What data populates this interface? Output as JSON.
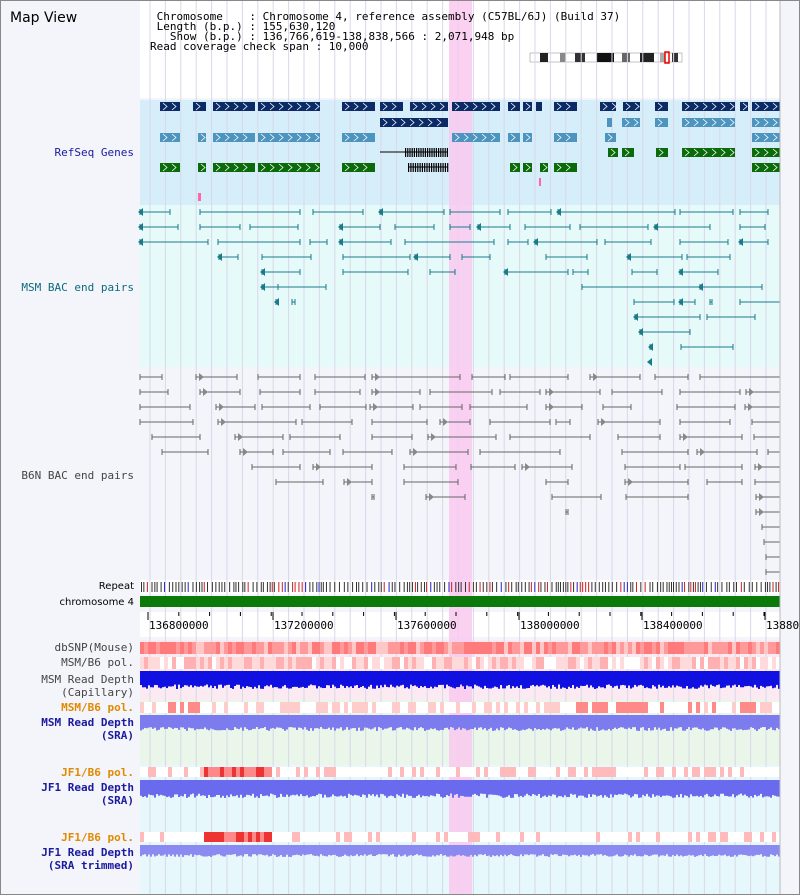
{
  "title": "Map View",
  "info_lines": [
    " Chromosome    : Chromosome 4, reference assembly (C57BL/6J) (Build 37)",
    " Length (b.p.) : 155,630,120",
    "   Show (b.p.) : 136,766,619-138,838,566 : 2,071,948 bp",
    "Read coverage check span : 10,000"
  ],
  "tracks": {
    "refseq": "RefSeq Genes",
    "msm_bac": "MSM BAC end pairs",
    "b6n_bac": "B6N BAC end pairs",
    "repeat": "Repeat",
    "chromosome": "chromosome 4",
    "dbsnp": "dbSNP(Mouse)",
    "msm_pol": "MSM/B6 pol.",
    "msm_depth_cap_1": "MSM Read Depth",
    "msm_depth_cap_2": "(Capillary)",
    "msm_pol_2": "MSM/B6 pol.",
    "msm_depth_sra_1": "MSM Read Depth",
    "msm_depth_sra_2": "(SRA)",
    "jf1_pol": "JF1/B6 pol.",
    "jf1_depth_sra_1": "JF1 Read Depth",
    "jf1_depth_sra_2": "(SRA)",
    "jf1_pol_2": "JF1/B6 pol.",
    "jf1_depth_trim_1": "JF1 Read Depth",
    "jf1_depth_trim_2": "(SRA trimmed)"
  },
  "axis": {
    "ticks": [
      "136800000",
      "137200000",
      "137600000",
      "138000000",
      "138400000",
      "13880"
    ]
  },
  "colors": {
    "refseq_bg": "#d6eefa",
    "msm_bg": "#e6fafa",
    "b6n_bg": "#f4f4fb",
    "highlight": "#f9c9ef",
    "gene_dark": "#0b2a66",
    "gene_mid": "#4d94bf",
    "gene_green": "#0b6b0b",
    "msm_line": "#1a7a8a",
    "b6n_line": "#666666",
    "chrom_bar": "#0b7a0b",
    "label_blue": "#1a1a9e",
    "label_teal": "#0b6b7a",
    "label_gray": "#444444",
    "label_orange": "#e08a00"
  }
}
